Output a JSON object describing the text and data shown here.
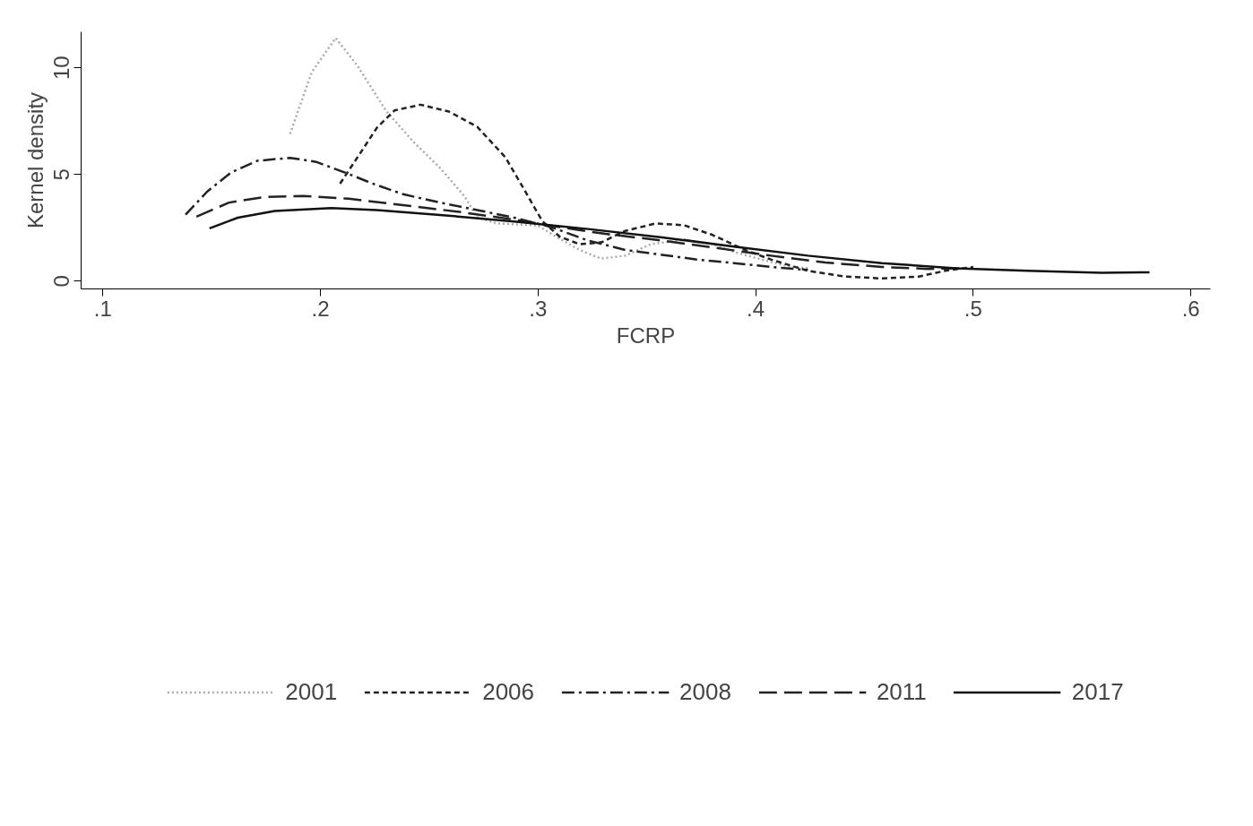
{
  "chart_data": {
    "type": "line",
    "xlabel": "FCRP",
    "ylabel": "Kernel density",
    "xlim": [
      0.09,
      0.609
    ],
    "ylim": [
      -0.37,
      11.69
    ],
    "xticks": [
      {
        "value": 0.1,
        "label": ".1"
      },
      {
        "value": 0.2,
        "label": ".2"
      },
      {
        "value": 0.3,
        "label": ".3"
      },
      {
        "value": 0.4,
        "label": ".4"
      },
      {
        "value": 0.5,
        "label": ".5"
      },
      {
        "value": 0.6,
        "label": ".6"
      }
    ],
    "yticks": [
      0,
      5,
      10
    ],
    "grid": false,
    "legend": "bottom",
    "marker": "none",
    "series": [
      {
        "name": "2001",
        "color": "#aaaaaa",
        "line_style": "dotted",
        "x": [
          0.186,
          0.196,
          0.207,
          0.217,
          0.23,
          0.243,
          0.255,
          0.266,
          0.272,
          0.281,
          0.291,
          0.3,
          0.308,
          0.319,
          0.329,
          0.34,
          0.352,
          0.367,
          0.38,
          0.39,
          0.403,
          0.416,
          0.425
        ],
        "values": [
          6.9,
          9.8,
          11.4,
          10.1,
          8.0,
          6.5,
          5.3,
          4.0,
          3.0,
          2.7,
          2.65,
          2.6,
          2.1,
          1.46,
          1.05,
          1.19,
          1.73,
          1.94,
          1.73,
          1.37,
          1.0,
          0.66,
          0.6
        ]
      },
      {
        "name": "2006",
        "color": "#222222",
        "line_style": "dashed",
        "x": [
          0.209,
          0.217,
          0.226,
          0.234,
          0.246,
          0.259,
          0.272,
          0.285,
          0.293,
          0.302,
          0.31,
          0.319,
          0.329,
          0.34,
          0.354,
          0.367,
          0.38,
          0.395,
          0.407,
          0.424,
          0.441,
          0.458,
          0.475,
          0.487,
          0.5
        ],
        "values": [
          4.57,
          5.8,
          7.2,
          8.0,
          8.27,
          7.95,
          7.24,
          5.8,
          4.4,
          2.8,
          2.08,
          1.73,
          1.81,
          2.35,
          2.7,
          2.62,
          2.17,
          1.46,
          1.01,
          0.48,
          0.21,
          0.12,
          0.21,
          0.48,
          0.66
        ]
      },
      {
        "name": "2008",
        "color": "#222222",
        "line_style": "dashdot",
        "x": [
          0.138,
          0.148,
          0.159,
          0.171,
          0.186,
          0.198,
          0.211,
          0.224,
          0.238,
          0.255,
          0.272,
          0.289,
          0.306,
          0.323,
          0.34,
          0.357,
          0.373,
          0.39,
          0.407,
          0.424
        ],
        "values": [
          3.11,
          4.2,
          5.1,
          5.64,
          5.78,
          5.59,
          5.1,
          4.57,
          4.07,
          3.68,
          3.33,
          2.97,
          2.53,
          1.9,
          1.46,
          1.23,
          1.01,
          0.84,
          0.66,
          0.52
        ]
      },
      {
        "name": "2011",
        "color": "#222222",
        "line_style": "longdash",
        "x": [
          0.143,
          0.158,
          0.175,
          0.192,
          0.213,
          0.238,
          0.264,
          0.289,
          0.31,
          0.331,
          0.357,
          0.382,
          0.407,
          0.432,
          0.458,
          0.479,
          0.494
        ],
        "values": [
          3.02,
          3.68,
          3.95,
          3.99,
          3.86,
          3.56,
          3.24,
          2.88,
          2.53,
          2.21,
          1.9,
          1.55,
          1.19,
          0.87,
          0.66,
          0.57,
          0.6
        ]
      },
      {
        "name": "2017",
        "color": "#111111",
        "line_style": "solid",
        "x": [
          0.149,
          0.162,
          0.179,
          0.205,
          0.226,
          0.255,
          0.289,
          0.323,
          0.357,
          0.39,
          0.424,
          0.458,
          0.492,
          0.525,
          0.559,
          0.581
        ],
        "values": [
          2.47,
          2.97,
          3.29,
          3.42,
          3.33,
          3.1,
          2.79,
          2.44,
          2.05,
          1.62,
          1.19,
          0.84,
          0.6,
          0.48,
          0.39,
          0.41
        ]
      }
    ]
  }
}
